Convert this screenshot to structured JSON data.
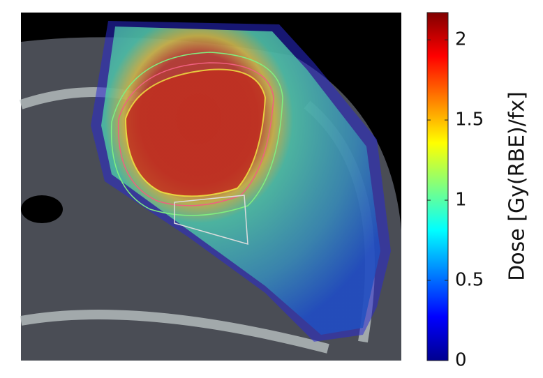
{
  "chart_data": {
    "type": "heatmap",
    "colormap": "jet",
    "colorbar_label": "Dose [Gy(RBE)/fx]",
    "clim": [
      0,
      2.17
    ],
    "cticks": [
      0,
      0.5,
      1,
      1.5,
      2
    ]
  }
}
